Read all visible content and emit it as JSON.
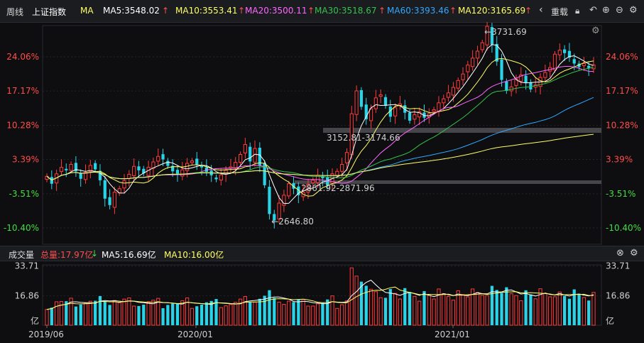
{
  "top": {
    "period_label": "周线",
    "index_name": "上证指数",
    "indicator": "MA",
    "ma": [
      {
        "label": "MA5:3548.02",
        "color": "#ffffff"
      },
      {
        "label": "MA10:3553.41",
        "color": "#ffff66"
      },
      {
        "label": "MA20:3500.11",
        "color": "#ff66ff"
      },
      {
        "label": "MA30:3518.67",
        "color": "#35c14b"
      },
      {
        "label": "MA60:3393.46",
        "color": "#31a7ff"
      },
      {
        "label": "MA120:3165.69",
        "color": "#ffff66"
      }
    ],
    "overlay_label": "重载",
    "colors": {
      "up": "#ff3b3b",
      "down": "#29d3e8",
      "pos": "#ff4d4d",
      "neg": "#44dd44"
    }
  },
  "price_axis": {
    "left_labels": [
      "24.06%",
      "17.17%",
      "10.28%",
      "3.39%",
      "-3.51%",
      "-10.40%"
    ],
    "right_labels": [
      "24.06%",
      "17.17%",
      "10.28%",
      "3.39%",
      "-3.51%",
      "-10.40%"
    ]
  },
  "annotations": {
    "high": "3731.69",
    "low": "2646.80",
    "zone_upper": "3152.81-3174.66",
    "zone_lower": "2861.92-2871.96"
  },
  "volume_bar": {
    "title": "成交量",
    "total": "总量:17.97亿",
    "ma5": "MA5:16.69亿",
    "ma10": "MA10:16.00亿"
  },
  "volume_axis": {
    "labels": [
      "33.71",
      "16.86",
      "亿"
    ]
  },
  "x_axis": {
    "labels": [
      "2019/06",
      "2020/01",
      "2021/01"
    ]
  },
  "chart_data": {
    "type": "candlestick",
    "title": "上证指数 周线",
    "x_ticks": [
      "2019/06",
      "2020/01",
      "2021/01"
    ],
    "y_percent_ticks": [
      24.06,
      17.17,
      10.28,
      3.39,
      -3.51,
      -10.4
    ],
    "price_high": 3731.69,
    "price_low": 2646.8,
    "volume_ticks_yi": [
      33.71,
      16.86
    ],
    "volume_total_yi": 17.97,
    "volume_ma5_yi": 16.69,
    "volume_ma10_yi": 16.0,
    "ma_values": {
      "MA5": 3548.02,
      "MA10": 3553.41,
      "MA20": 3500.11,
      "MA30": 3518.67,
      "MA60": 3393.46,
      "MA120": 3165.69
    },
    "weekly_close_pct": [
      0,
      -1.5,
      0.5,
      1.8,
      1.2,
      2.4,
      1.0,
      -0.5,
      0.8,
      2.2,
      1.4,
      -0.8,
      -4.5,
      -5.8,
      -3.2,
      -2.5,
      -0.9,
      0.4,
      2.0,
      1.2,
      0.6,
      1.8,
      2.9,
      4.0,
      3.4,
      2.1,
      1.0,
      0.5,
      1.3,
      2.6,
      3.1,
      2.4,
      1.8,
      0.9,
      0.2,
      -0.6,
      0.3,
      1.2,
      1.9,
      2.8,
      4.4,
      6.4,
      3.0,
      5.6,
      2.2,
      -1.8,
      -7.6,
      -8.9,
      -5.4,
      -3.8,
      -1.5,
      -2.5,
      -3.8,
      -3.2,
      -1.6,
      -0.8,
      0.2,
      -0.4,
      -1.8,
      0.5,
      1.0,
      2.4,
      4.8,
      12.6,
      17.2,
      14.0,
      11.5,
      13.6,
      15.8,
      16.4,
      14.2,
      12.0,
      13.8,
      14.6,
      12.8,
      11.2,
      12.4,
      13.0,
      11.8,
      12.6,
      13.4,
      14.8,
      15.6,
      16.8,
      17.9,
      19.3,
      20.6,
      22.4,
      23.8,
      25.2,
      26.9,
      30.2,
      26.5,
      23.1,
      19.4,
      17.2,
      18.0,
      19.6,
      20.4,
      18.8,
      17.5,
      18.4,
      19.9,
      20.9,
      21.9,
      24.6,
      25.4,
      24.8,
      23.9,
      22.7,
      22.0,
      22.7,
      21.8,
      22.4
    ]
  }
}
